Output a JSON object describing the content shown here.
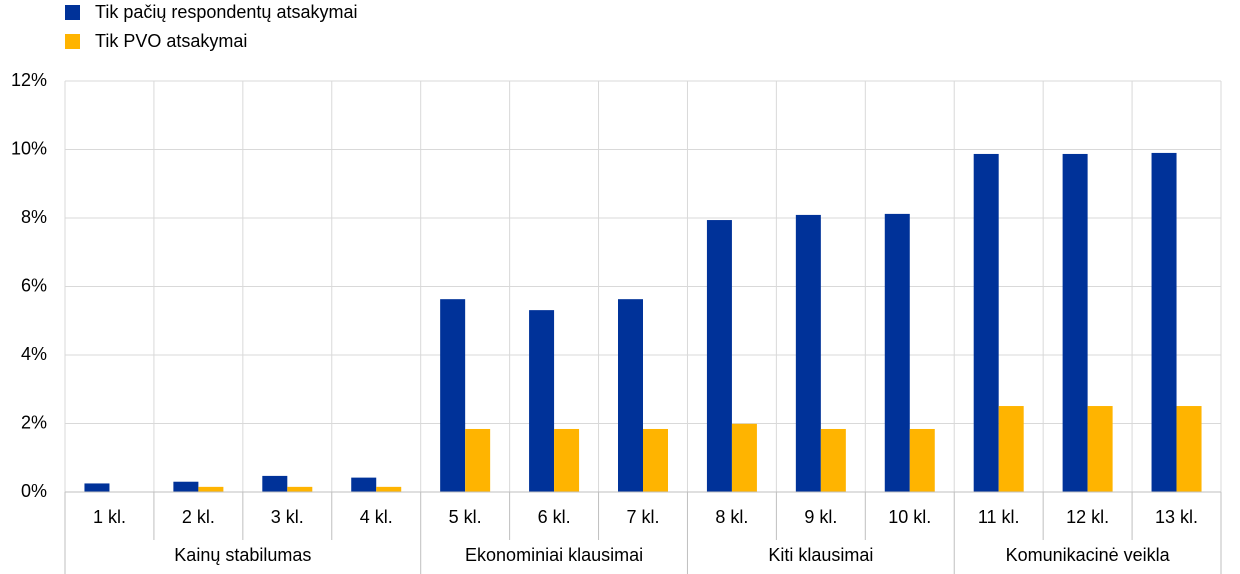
{
  "chart_data": {
    "type": "bar",
    "groups": [
      {
        "label": "Kainų stabilumas",
        "categories": [
          "1 kl.",
          "2 kl.",
          "3 kl.",
          "4 kl."
        ]
      },
      {
        "label": "Ekonominiai klausimai",
        "categories": [
          "5 kl.",
          "6 kl.",
          "7 kl."
        ]
      },
      {
        "label": "Kiti klausimai",
        "categories": [
          "8 kl.",
          "9 kl.",
          "10 kl."
        ]
      },
      {
        "label": "Komunikacinė veikla",
        "categories": [
          "11 kl.",
          "12 kl.",
          "13 kl."
        ]
      }
    ],
    "series": [
      {
        "name": "Tik pačių respondentų atsakymai",
        "color": "#003299",
        "values": [
          0.25,
          0.3,
          0.47,
          0.42,
          5.63,
          5.31,
          5.63,
          7.94,
          8.09,
          8.12,
          9.87,
          9.87,
          9.9
        ]
      },
      {
        "name": "Tik PVO atsakymai",
        "color": "#FFB400",
        "values": [
          0,
          0.15,
          0.15,
          0.15,
          1.84,
          1.84,
          1.84,
          1.99,
          1.84,
          1.84,
          2.51,
          2.51,
          2.51
        ]
      }
    ],
    "ylim": [
      0,
      12
    ],
    "yticks": [
      {
        "value": 0,
        "label": "0%"
      },
      {
        "value": 2,
        "label": "2%"
      },
      {
        "value": 4,
        "label": "4%"
      },
      {
        "value": 6,
        "label": "6%"
      },
      {
        "value": 8,
        "label": "8%"
      },
      {
        "value": 10,
        "label": "10%"
      },
      {
        "value": 12,
        "label": "12%"
      }
    ],
    "grid": true
  }
}
